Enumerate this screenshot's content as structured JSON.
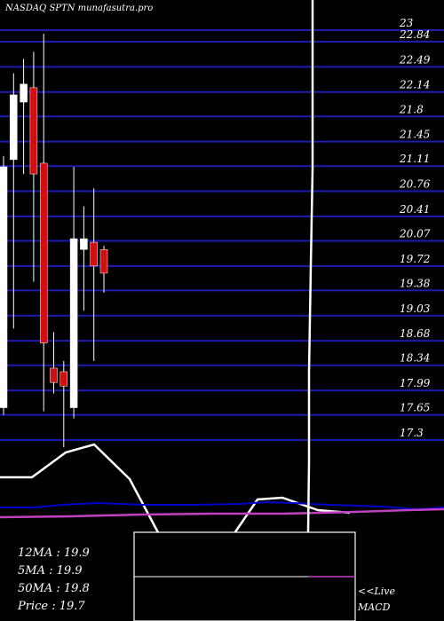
{
  "chart_data": {
    "type": "candlestick",
    "title": "NASDAQ SPTN munafasutra.pro",
    "y_ticks": [
      23,
      22.84,
      22.49,
      22.14,
      21.8,
      21.45,
      21.11,
      20.76,
      20.41,
      20.07,
      19.72,
      19.38,
      19.03,
      18.68,
      18.34,
      17.99,
      17.65,
      17.3
    ],
    "y_tick_labels": [
      "23",
      "22.84",
      "22.49",
      "22.14",
      "21.8",
      "21.45",
      "21.11",
      "20.76",
      "20.41",
      "20.07",
      "19.72",
      "19.38",
      "19.03",
      "18.68",
      "18.34",
      "17.99",
      "17.65",
      "17.3"
    ],
    "ylim": [
      17.15,
      23.08
    ],
    "candles": [
      {
        "open": 17.75,
        "close": 21.1,
        "high": 21.25,
        "low": 17.65,
        "color": "white"
      },
      {
        "open": 21.2,
        "close": 22.1,
        "high": 22.4,
        "low": 18.85,
        "color": "white"
      },
      {
        "open": 22.0,
        "close": 22.25,
        "high": 22.6,
        "low": 21.0,
        "color": "white"
      },
      {
        "open": 22.2,
        "close": 21.0,
        "high": 22.7,
        "low": 19.5,
        "color": "red"
      },
      {
        "open": 21.15,
        "close": 18.65,
        "high": 22.95,
        "low": 17.7,
        "color": "red"
      },
      {
        "open": 18.3,
        "close": 18.1,
        "high": 18.8,
        "low": 17.95,
        "color": "red"
      },
      {
        "open": 18.25,
        "close": 18.05,
        "high": 18.4,
        "low": 17.2,
        "color": "red"
      },
      {
        "open": 17.75,
        "close": 20.1,
        "high": 21.1,
        "low": 17.6,
        "color": "white"
      },
      {
        "open": 19.95,
        "close": 20.1,
        "high": 20.55,
        "low": 19.1,
        "color": "white"
      },
      {
        "open": 20.05,
        "close": 19.72,
        "high": 20.8,
        "low": 18.4,
        "color": "red"
      },
      {
        "open": 19.95,
        "close": 19.62,
        "high": 20.0,
        "low": 19.35,
        "color": "red"
      }
    ],
    "stats": [
      {
        "label": "12MA",
        "value": "19.9"
      },
      {
        "label": "5MA",
        "value": "19.9"
      },
      {
        "label": "50MA",
        "value": "19.8"
      },
      {
        "label": "Price",
        "value": "19.7"
      }
    ],
    "live_label": "<<Live",
    "macd_label": "MACD",
    "colors": {
      "background": "#000000",
      "gridline": "#1c1cb0",
      "bull_candle": "#ffffff",
      "bear_candle": "#d01010",
      "ma_short": "#ffffff",
      "ma_long": "#0000cc",
      "ma_very_long": "#c040c0"
    }
  }
}
